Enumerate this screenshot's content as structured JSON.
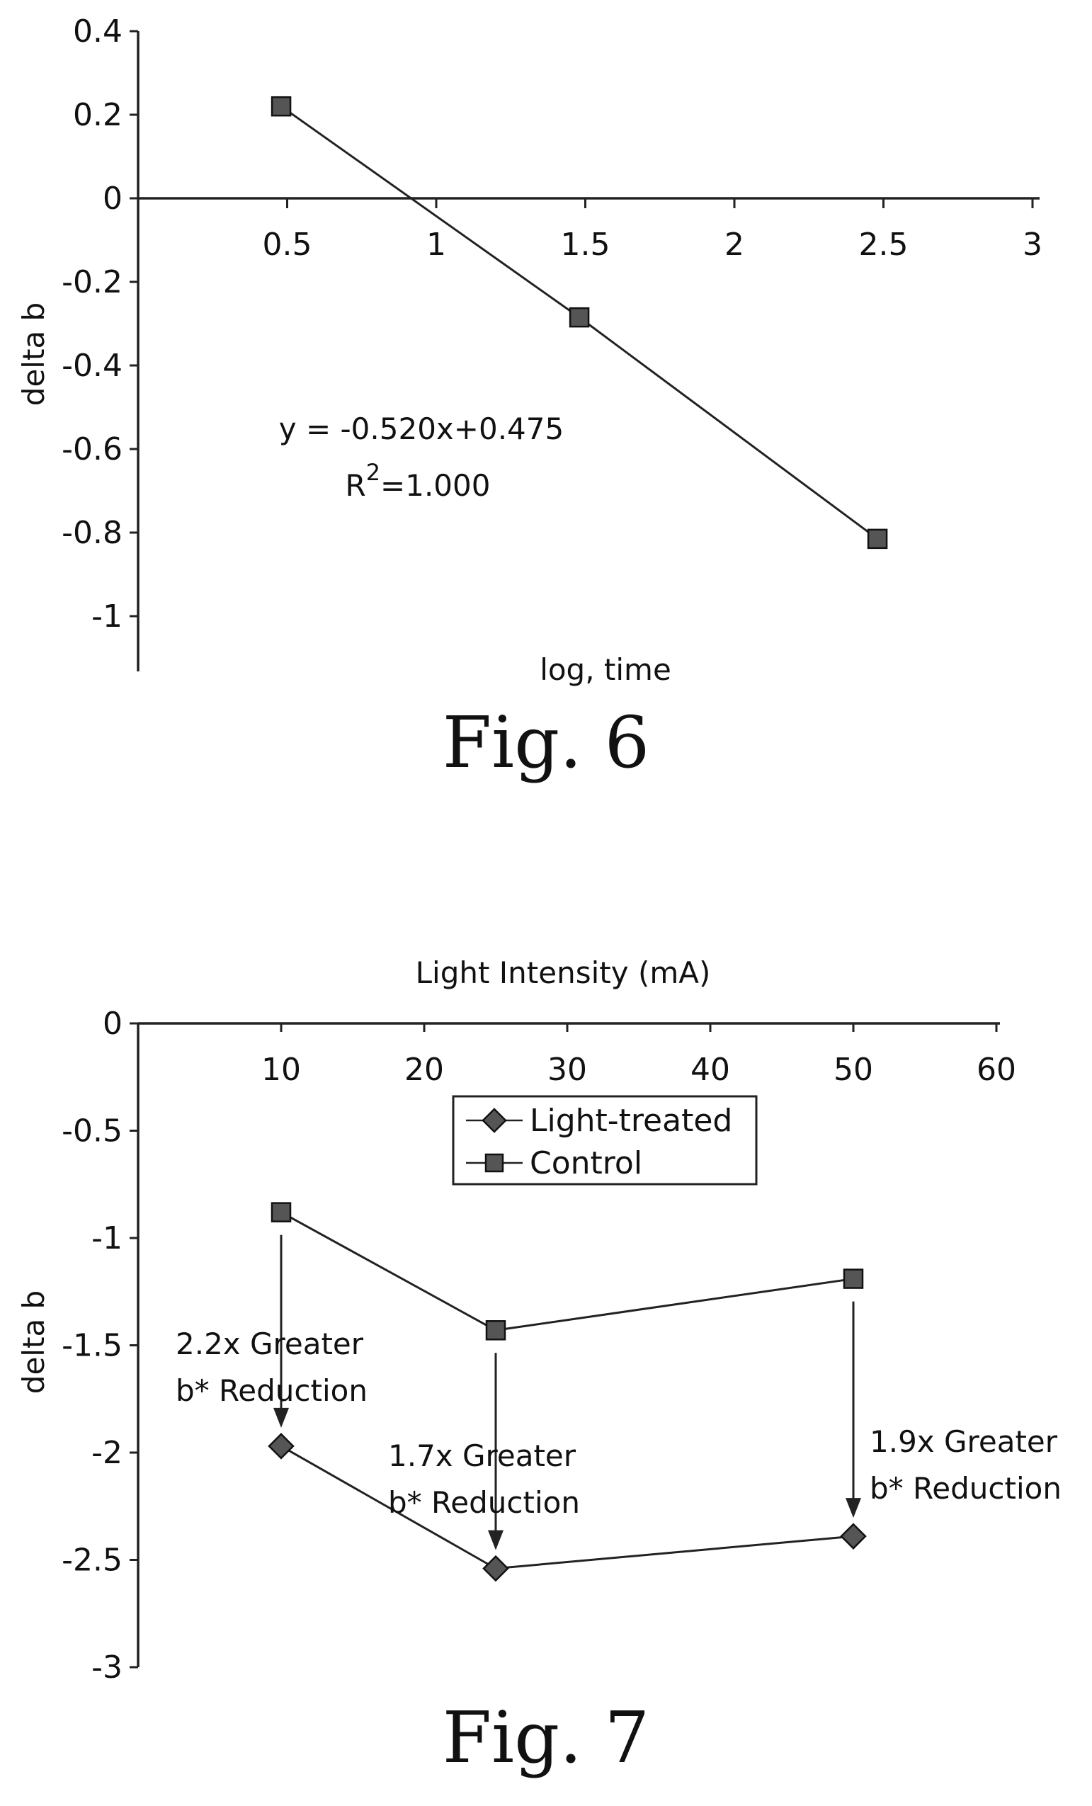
{
  "chart_data": [
    {
      "type": "line",
      "title": "",
      "xlabel": "log, time",
      "ylabel": "delta b",
      "xlim": [
        0,
        3
      ],
      "ylim": [
        -1.1,
        0.4
      ],
      "xticks": [
        "0.5",
        "1",
        "1.5",
        "2",
        "2.5",
        "3"
      ],
      "yticks": [
        "0.4",
        "0.2",
        "0",
        "-0.2",
        "-0.4",
        "-0.6",
        "-0.8",
        "-1"
      ],
      "series": [
        {
          "marker": "square",
          "x": [
            0.48,
            1.48,
            2.48
          ],
          "y": [
            0.22,
            -0.285,
            -0.815
          ]
        }
      ],
      "annotations": {
        "equation": "y = -0.520x+0.475",
        "r2_prefix": "R",
        "r2_sup": "2",
        "r2_value": "=1.000"
      },
      "grid": false,
      "figure_label": "Fig. 6"
    },
    {
      "type": "line",
      "title": "Light Intensity (mA)",
      "xlabel": "Light Intensity (mA)",
      "ylabel": "delta b",
      "xlim": [
        0,
        60
      ],
      "ylim": [
        -3,
        0
      ],
      "xticks": [
        "10",
        "20",
        "30",
        "40",
        "50",
        "60"
      ],
      "yticks": [
        "0",
        "-0.5",
        "-1",
        "-1.5",
        "-2",
        "-2.5",
        "-3"
      ],
      "x": [
        10,
        25,
        50
      ],
      "series": [
        {
          "name": "Light-treated",
          "marker": "diamond",
          "values": [
            -1.97,
            -2.54,
            -2.39
          ]
        },
        {
          "name": "Control",
          "marker": "square",
          "values": [
            -0.88,
            -1.43,
            -1.19
          ]
        }
      ],
      "legend": "top-center",
      "annotations": [
        {
          "line1": "2.2x Greater",
          "line2": "b* Reduction"
        },
        {
          "line1": "1.7x Greater",
          "line2": "b* Reduction"
        },
        {
          "line1": "1.9x Greater",
          "line2": "b* Reduction"
        }
      ],
      "grid": false,
      "figure_label": "Fig. 7"
    }
  ]
}
